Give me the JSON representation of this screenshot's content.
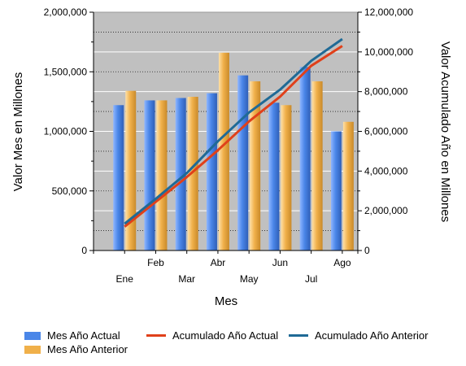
{
  "colors": {
    "plot_bg": "#c0c0c0",
    "bar_actual": "#4a86e8",
    "bar_anterior": "#f0b04a",
    "line_actual": "#e0401a",
    "line_anterior": "#1f6a96"
  },
  "chart_data": {
    "type": "bar",
    "categories": [
      "Ene",
      "Feb",
      "Mar",
      "Abr",
      "May",
      "Jun",
      "Jul",
      "Ago"
    ],
    "xlabel": "Mes",
    "ylabel_left": "Valor Mes en Millones",
    "ylabel_right": "Valor Acumulado Año en Millones",
    "ylim_left": [
      0,
      2000000
    ],
    "ylim_right": [
      0,
      12000000
    ],
    "yticks_left": [
      "0",
      "500,000",
      "1,000,000",
      "1,500,000",
      "2,000,000"
    ],
    "yticks_right": [
      "0",
      "2,000,000",
      "4,000,000",
      "6,000,000",
      "8,000,000",
      "10,000,000",
      "12,000,000"
    ],
    "grid": true,
    "legend_position": "bottom",
    "series": [
      {
        "name": "Mes Año Actual",
        "type": "bar",
        "axis": "left",
        "values": [
          1220000,
          1260000,
          1280000,
          1320000,
          1470000,
          1240000,
          1540000,
          1000000
        ]
      },
      {
        "name": "Mes Año Anterior",
        "type": "bar",
        "axis": "left",
        "values": [
          1340000,
          1260000,
          1290000,
          1660000,
          1420000,
          1220000,
          1420000,
          1080000
        ]
      },
      {
        "name": "Acumulado Año Actual",
        "type": "line",
        "axis": "right",
        "values": [
          1200000,
          2450000,
          3700000,
          5050000,
          6500000,
          7750000,
          9300000,
          10300000
        ]
      },
      {
        "name": "Acumulado Año Anterior",
        "type": "line",
        "axis": "right",
        "values": [
          1350000,
          2600000,
          3900000,
          5500000,
          6950000,
          8100000,
          9550000,
          10650000
        ]
      }
    ]
  }
}
